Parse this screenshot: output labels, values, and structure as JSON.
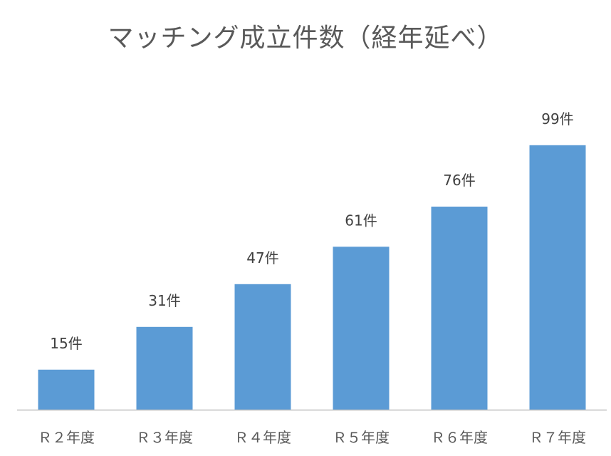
{
  "chart_data": {
    "type": "bar",
    "title": "マッチング成立件数（経年延べ）",
    "categories": [
      "Ｒ２年度",
      "Ｒ３年度",
      "Ｒ４年度",
      "Ｒ５年度",
      "Ｒ６年度",
      "Ｒ７年度"
    ],
    "values": [
      15,
      31,
      47,
      61,
      76,
      99
    ],
    "data_labels": [
      "15件",
      "31件",
      "47件",
      "61件",
      "76件",
      "99件"
    ],
    "bar_color": "#5b9bd5",
    "axis_color": "#bfbfbf",
    "ylim": [
      0,
      100
    ],
    "grid": false,
    "legend": "none"
  }
}
